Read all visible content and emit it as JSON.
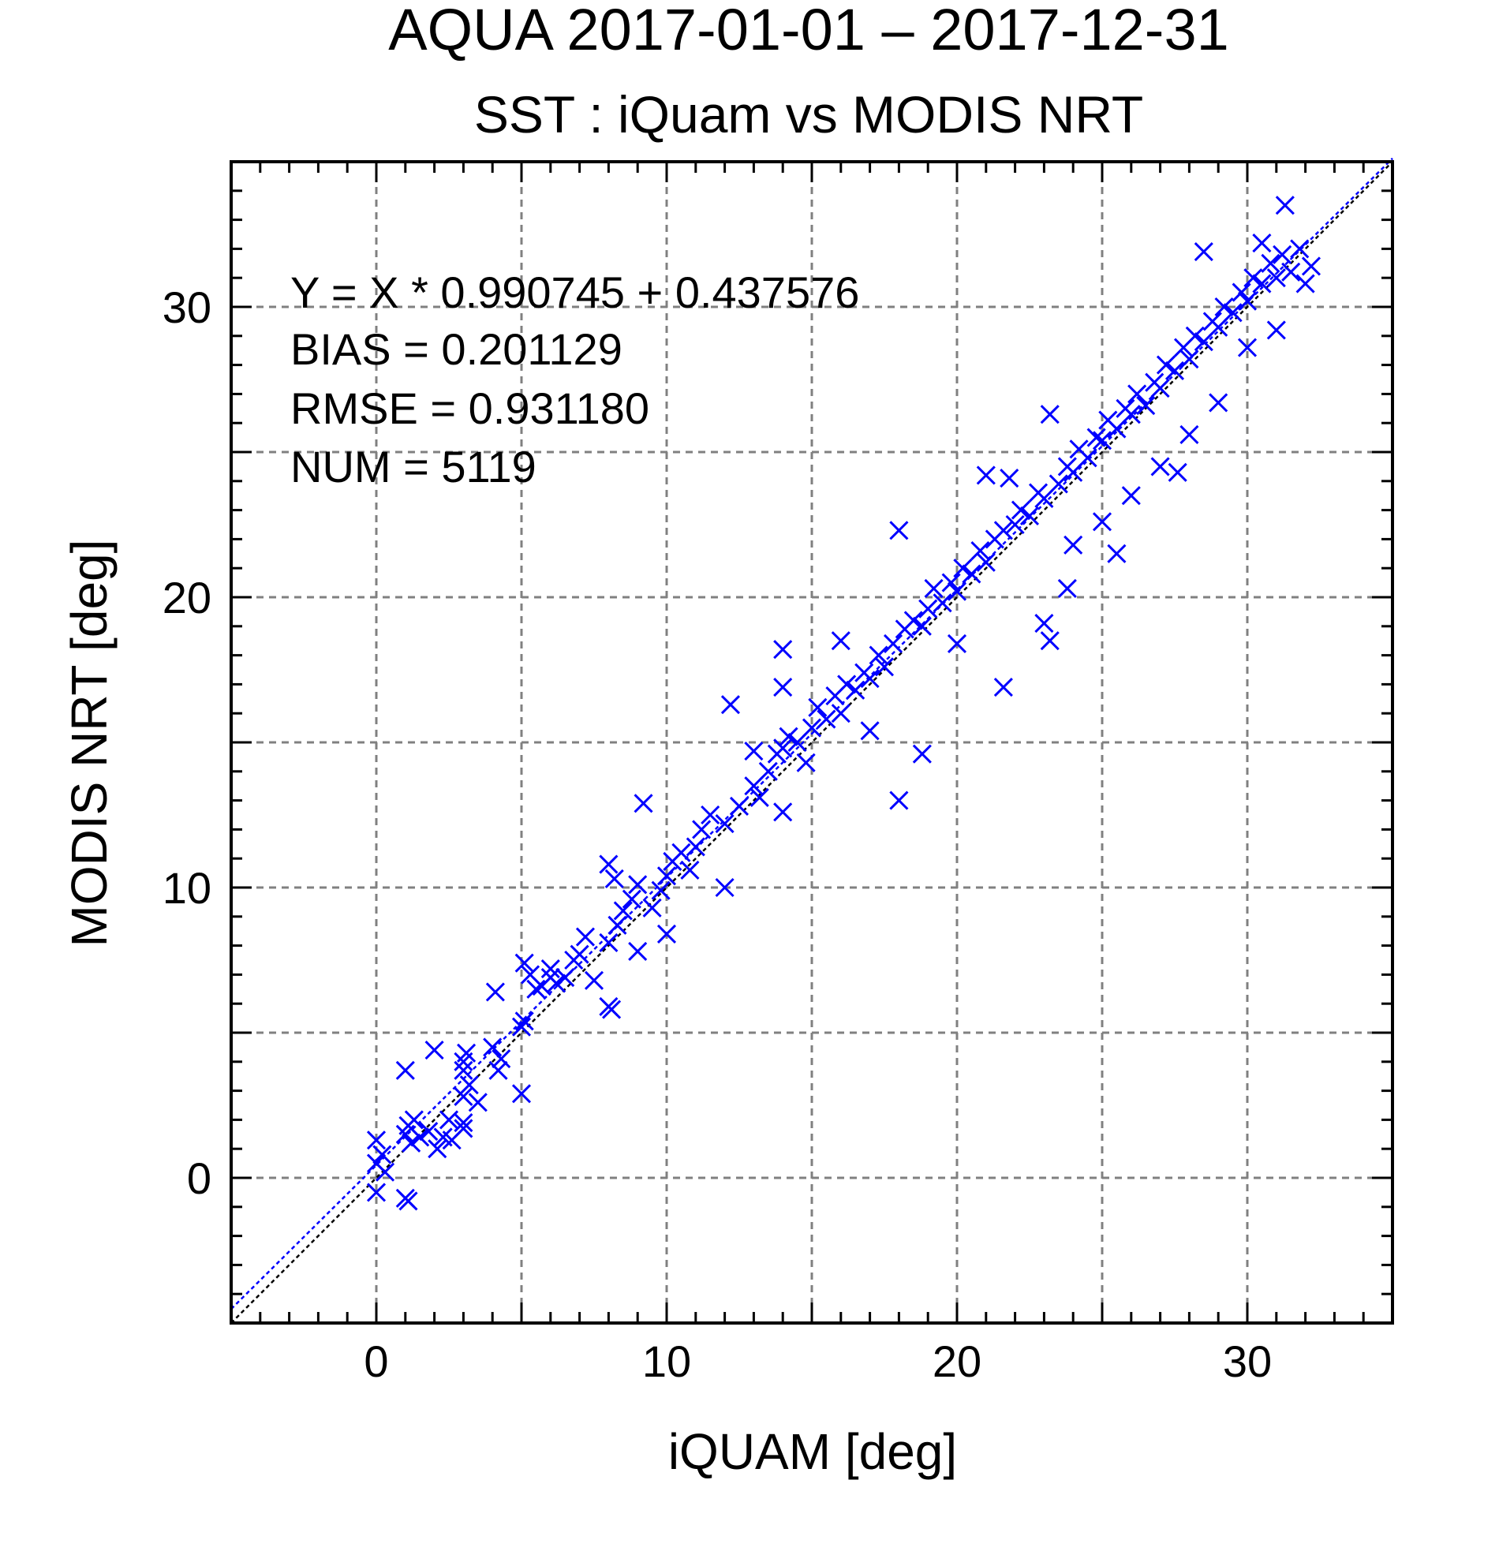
{
  "chart_data": {
    "type": "scatter",
    "title": "AQUA  2017-01-01 – 2017-12-31",
    "subtitle": "SST : iQuam vs MODIS NRT",
    "xlabel": "iQUAM [deg]",
    "ylabel": "MODIS NRT [deg]",
    "xlim": [
      -5,
      35
    ],
    "ylim": [
      -5,
      35
    ],
    "xticks": [
      0,
      10,
      20,
      30
    ],
    "yticks": [
      0,
      10,
      20,
      30
    ],
    "grid": true,
    "marker": "x",
    "colors": {
      "points": "#0000ff",
      "fit_line": "#0000ff",
      "identity_line": "#000000",
      "grid": "#808080"
    },
    "stats": {
      "fit": "Y = X * 0.990745 + 0.437576",
      "bias": "BIAS = 0.201129",
      "rmse": "RMSE = 0.931180",
      "num": "NUM = 5119"
    },
    "fit_line": {
      "slope": 0.990745,
      "intercept": 0.437576
    },
    "identity_line": {
      "slope": 1,
      "intercept": 0
    },
    "series": [
      {
        "values": [
          [
            0.0,
            0.5
          ],
          [
            0.0,
            1.3
          ],
          [
            0.0,
            -0.5
          ],
          [
            0.2,
            0.8
          ],
          [
            0.3,
            0.2
          ],
          [
            1.0,
            1.5
          ],
          [
            1.0,
            3.7
          ],
          [
            1.1,
            1.8
          ],
          [
            1.2,
            1.2
          ],
          [
            1.3,
            2.0
          ],
          [
            1.0,
            -0.7
          ],
          [
            1.1,
            -0.8
          ],
          [
            1.5,
            1.4
          ],
          [
            1.8,
            1.6
          ],
          [
            2.0,
            4.4
          ],
          [
            2.1,
            1.0
          ],
          [
            2.3,
            1.4
          ],
          [
            2.5,
            2.0
          ],
          [
            2.6,
            1.3
          ],
          [
            3.0,
            1.9
          ],
          [
            3.0,
            1.7
          ],
          [
            3.0,
            2.8
          ],
          [
            3.0,
            3.7
          ],
          [
            3.0,
            4.0
          ],
          [
            3.1,
            4.3
          ],
          [
            3.2,
            3.2
          ],
          [
            3.5,
            2.6
          ],
          [
            4.0,
            4.5
          ],
          [
            4.1,
            6.4
          ],
          [
            4.2,
            3.7
          ],
          [
            4.3,
            4.1
          ],
          [
            5.0,
            2.9
          ],
          [
            5.0,
            5.2
          ],
          [
            5.1,
            5.4
          ],
          [
            5.1,
            7.4
          ],
          [
            5.3,
            7.0
          ],
          [
            5.5,
            6.5
          ],
          [
            5.7,
            6.6
          ],
          [
            6.0,
            6.9
          ],
          [
            6.0,
            7.2
          ],
          [
            6.2,
            6.7
          ],
          [
            6.5,
            6.9
          ],
          [
            6.8,
            7.5
          ],
          [
            7.0,
            7.7
          ],
          [
            7.2,
            8.3
          ],
          [
            7.5,
            6.8
          ],
          [
            8.0,
            5.9
          ],
          [
            8.1,
            5.8
          ],
          [
            8.0,
            8.1
          ],
          [
            8.3,
            8.7
          ],
          [
            8.0,
            10.8
          ],
          [
            8.2,
            10.3
          ],
          [
            8.5,
            9.2
          ],
          [
            8.8,
            9.6
          ],
          [
            9.0,
            10.1
          ],
          [
            9.2,
            12.9
          ],
          [
            9.5,
            9.3
          ],
          [
            9.0,
            7.8
          ],
          [
            9.8,
            9.9
          ],
          [
            10.0,
            10.4
          ],
          [
            10.0,
            8.4
          ],
          [
            10.2,
            10.9
          ],
          [
            10.5,
            11.2
          ],
          [
            10.8,
            10.6
          ],
          [
            11.0,
            11.4
          ],
          [
            11.2,
            12.0
          ],
          [
            11.5,
            12.5
          ],
          [
            12.0,
            10.0
          ],
          [
            12.0,
            12.2
          ],
          [
            12.2,
            16.3
          ],
          [
            12.5,
            12.8
          ],
          [
            13.0,
            13.5
          ],
          [
            13.0,
            14.7
          ],
          [
            13.2,
            13.1
          ],
          [
            13.5,
            14.0
          ],
          [
            13.8,
            14.6
          ],
          [
            14.0,
            14.8
          ],
          [
            14.0,
            12.6
          ],
          [
            14.2,
            15.2
          ],
          [
            14.0,
            16.9
          ],
          [
            14.0,
            18.2
          ],
          [
            14.5,
            15.0
          ],
          [
            14.8,
            14.3
          ],
          [
            15.0,
            15.5
          ],
          [
            15.2,
            16.2
          ],
          [
            15.5,
            15.8
          ],
          [
            15.8,
            16.6
          ],
          [
            16.0,
            16.0
          ],
          [
            16.0,
            18.5
          ],
          [
            16.2,
            17.0
          ],
          [
            16.5,
            16.8
          ],
          [
            16.8,
            17.4
          ],
          [
            17.0,
            17.2
          ],
          [
            17.0,
            15.4
          ],
          [
            17.3,
            18.0
          ],
          [
            17.5,
            17.6
          ],
          [
            17.8,
            18.4
          ],
          [
            18.0,
            13.0
          ],
          [
            18.0,
            22.3
          ],
          [
            18.2,
            18.9
          ],
          [
            18.5,
            19.2
          ],
          [
            18.8,
            14.6
          ],
          [
            18.8,
            19.0
          ],
          [
            19.0,
            19.6
          ],
          [
            19.2,
            20.3
          ],
          [
            19.5,
            19.8
          ],
          [
            19.8,
            20.5
          ],
          [
            20.0,
            20.2
          ],
          [
            20.0,
            18.4
          ],
          [
            20.2,
            21.0
          ],
          [
            20.5,
            20.8
          ],
          [
            20.8,
            21.6
          ],
          [
            21.0,
            21.2
          ],
          [
            21.0,
            24.2
          ],
          [
            21.3,
            22.0
          ],
          [
            21.6,
            16.9
          ],
          [
            21.6,
            22.3
          ],
          [
            21.8,
            24.1
          ],
          [
            22.0,
            22.5
          ],
          [
            22.2,
            23.0
          ],
          [
            22.5,
            22.8
          ],
          [
            22.8,
            23.6
          ],
          [
            23.0,
            23.4
          ],
          [
            23.0,
            19.1
          ],
          [
            23.2,
            18.5
          ],
          [
            23.2,
            26.3
          ],
          [
            23.5,
            23.9
          ],
          [
            23.8,
            20.3
          ],
          [
            23.8,
            24.5
          ],
          [
            24.0,
            24.3
          ],
          [
            24.0,
            21.8
          ],
          [
            24.2,
            25.1
          ],
          [
            24.5,
            24.8
          ],
          [
            24.8,
            25.5
          ],
          [
            25.0,
            22.6
          ],
          [
            25.0,
            25.4
          ],
          [
            25.2,
            26.1
          ],
          [
            25.5,
            25.8
          ],
          [
            25.5,
            21.5
          ],
          [
            25.8,
            26.5
          ],
          [
            26.0,
            26.3
          ],
          [
            26.0,
            23.5
          ],
          [
            26.2,
            27.0
          ],
          [
            26.5,
            26.6
          ],
          [
            26.8,
            27.4
          ],
          [
            27.0,
            27.2
          ],
          [
            27.0,
            24.5
          ],
          [
            27.2,
            28.0
          ],
          [
            27.5,
            27.8
          ],
          [
            27.8,
            28.6
          ],
          [
            27.6,
            24.3
          ],
          [
            28.0,
            28.2
          ],
          [
            28.0,
            25.6
          ],
          [
            28.2,
            29.0
          ],
          [
            28.5,
            28.8
          ],
          [
            28.5,
            31.9
          ],
          [
            28.8,
            29.5
          ],
          [
            29.0,
            29.3
          ],
          [
            29.0,
            26.7
          ],
          [
            29.2,
            30.0
          ],
          [
            29.5,
            29.8
          ],
          [
            29.8,
            30.5
          ],
          [
            30.0,
            30.2
          ],
          [
            30.0,
            28.6
          ],
          [
            30.2,
            31.0
          ],
          [
            30.5,
            30.8
          ],
          [
            30.5,
            32.2
          ],
          [
            30.8,
            31.5
          ],
          [
            31.0,
            31.0
          ],
          [
            31.0,
            29.2
          ],
          [
            31.2,
            31.8
          ],
          [
            31.3,
            33.5
          ],
          [
            31.5,
            31.2
          ],
          [
            31.8,
            32.0
          ],
          [
            32.0,
            30.8
          ],
          [
            32.2,
            31.4
          ]
        ]
      }
    ]
  }
}
